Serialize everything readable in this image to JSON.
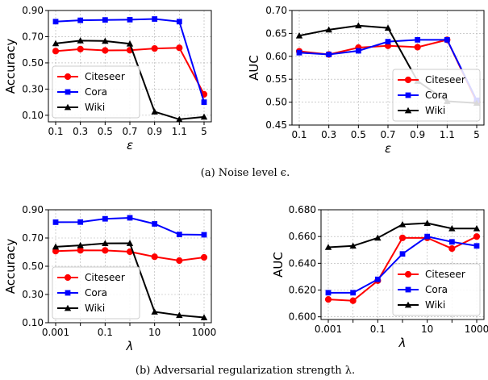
{
  "captions": [
    "(a) Noise level ϵ.",
    "(b) Adversarial regularization strength λ."
  ],
  "colors": {
    "Citeseer": "#ff0000",
    "Cora": "#0000ff",
    "Wiki": "#000000"
  },
  "chart_data": [
    {
      "type": "line",
      "xlabel": "ε",
      "ylabel": "Accuracy",
      "categories": [
        "0.1",
        "0.3",
        "0.5",
        "0.7",
        "0.9",
        "1.1",
        "5"
      ],
      "ylim": [
        0.05,
        0.9
      ],
      "yticks": [
        "0.10",
        "0.30",
        "0.50",
        "0.70",
        "0.90"
      ],
      "grid": true,
      "legend": "bottom-left",
      "series": [
        {
          "name": "Citeseer",
          "marker": "circle",
          "values": [
            0.59,
            0.605,
            0.595,
            0.597,
            0.61,
            0.615,
            0.26
          ]
        },
        {
          "name": "Cora",
          "marker": "square",
          "values": [
            0.815,
            0.825,
            0.828,
            0.83,
            0.835,
            0.815,
            0.2
          ]
        },
        {
          "name": "Wiki",
          "marker": "triangle",
          "values": [
            0.648,
            0.67,
            0.667,
            0.646,
            0.127,
            0.069,
            0.088
          ]
        }
      ]
    },
    {
      "type": "line",
      "xlabel": "ε",
      "ylabel": "AUC",
      "categories": [
        "0.1",
        "0.3",
        "0.5",
        "0.7",
        "0.9",
        "1.1",
        "5"
      ],
      "ylim": [
        0.45,
        0.7
      ],
      "yticks": [
        "0.45",
        "0.50",
        "0.55",
        "0.60",
        "0.65",
        "0.70"
      ],
      "grid": true,
      "legend": "bottom-right",
      "series": [
        {
          "name": "Citeseer",
          "marker": "circle",
          "values": [
            0.611,
            0.604,
            0.619,
            0.623,
            0.62,
            0.636,
            0.5
          ]
        },
        {
          "name": "Cora",
          "marker": "square",
          "values": [
            0.608,
            0.604,
            0.612,
            0.632,
            0.636,
            0.636,
            0.504
          ]
        },
        {
          "name": "Wiki",
          "marker": "triangle",
          "values": [
            0.645,
            0.658,
            0.667,
            0.662,
            0.546,
            0.502,
            0.498
          ]
        }
      ]
    },
    {
      "type": "line",
      "xlabel": "λ",
      "ylabel": "Accuracy",
      "categories": [
        "0.001",
        "",
        "0.1",
        "",
        "10",
        "",
        "1000"
      ],
      "ylim": [
        0.1,
        0.9
      ],
      "yticks": [
        "0.10",
        "0.30",
        "0.50",
        "0.70",
        "0.90"
      ],
      "grid": true,
      "legend": "bottom-left",
      "series": [
        {
          "name": "Citeseer",
          "marker": "circle",
          "values": [
            0.607,
            0.613,
            0.612,
            0.603,
            0.567,
            0.54,
            0.563
          ]
        },
        {
          "name": "Cora",
          "marker": "square",
          "values": [
            0.812,
            0.813,
            0.836,
            0.843,
            0.8,
            0.725,
            0.723
          ]
        },
        {
          "name": "Wiki",
          "marker": "triangle",
          "values": [
            0.638,
            0.648,
            0.662,
            0.663,
            0.177,
            0.153,
            0.137
          ]
        }
      ]
    },
    {
      "type": "line",
      "xlabel": "λ",
      "ylabel": "AUC",
      "categories": [
        "0.001",
        "",
        "0.1",
        "",
        "10",
        "",
        "1000"
      ],
      "ylim": [
        0.598,
        0.68
      ],
      "yticks": [
        "0.600",
        "0.620",
        "0.640",
        "0.660",
        "0.680"
      ],
      "grid": true,
      "legend": "bottom-right",
      "series": [
        {
          "name": "Citeseer",
          "marker": "circle",
          "values": [
            0.613,
            0.612,
            0.627,
            0.659,
            0.659,
            0.651,
            0.66
          ]
        },
        {
          "name": "Cora",
          "marker": "square",
          "values": [
            0.618,
            0.618,
            0.628,
            0.647,
            0.66,
            0.656,
            0.653
          ]
        },
        {
          "name": "Wiki",
          "marker": "triangle",
          "values": [
            0.652,
            0.653,
            0.659,
            0.669,
            0.67,
            0.666,
            0.666
          ]
        }
      ]
    }
  ]
}
